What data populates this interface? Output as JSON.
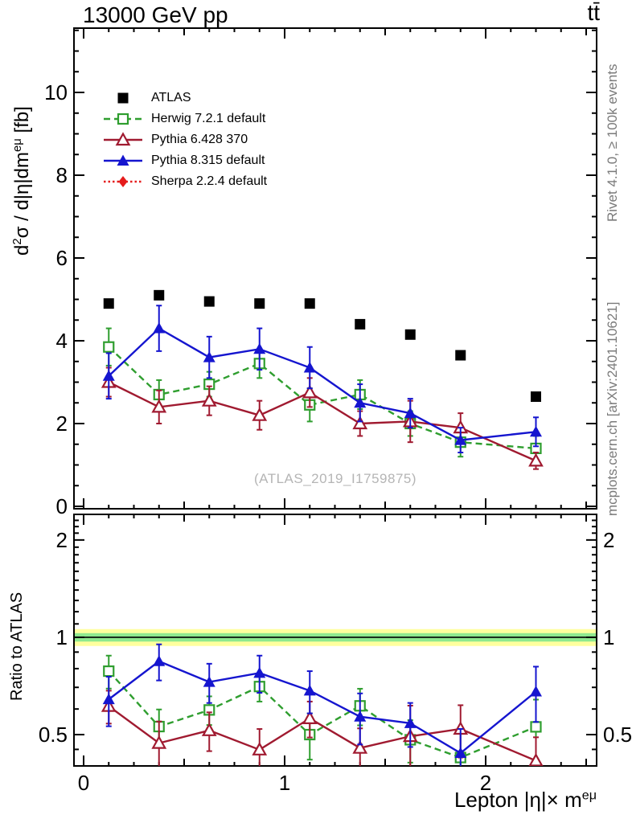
{
  "header": {
    "title_left": "13000 GeV pp",
    "title_right": "tt̄"
  },
  "side_notes": {
    "top": "Rivet 4.1.0, ≥ 100k events",
    "bottom": "mcplots.cern.ch [arXiv:2401.10621]"
  },
  "watermark": "(ATLAS_2019_I1759875)",
  "labels": {
    "ylabel_main": {
      "p1": "d",
      "s1": "2",
      "p2": "σ / d|η|dm",
      "s2": "eμ",
      "p3": " [fb]"
    },
    "ylabel_ratio": "Ratio to ATLAS",
    "xlabel": {
      "p1": "Lepton |η|× m",
      "s1": "eμ"
    }
  },
  "chart_data": {
    "type": "line",
    "title": "13000 GeV pp",
    "process_label": "tt̄",
    "xlabel": "Lepton |η|× m^eμ",
    "ylabel": "d²σ / d|η|dm^eμ [fb]",
    "ratio_label": "Ratio to ATLAS",
    "x": [
      0.125,
      0.375,
      0.625,
      0.875,
      1.125,
      1.375,
      1.625,
      1.875,
      2.25
    ],
    "bin_edges": [
      0,
      0.25,
      0.5,
      0.75,
      1.0,
      1.25,
      1.5,
      1.75,
      2.0,
      2.5
    ],
    "series": [
      {
        "key": "atlas",
        "name": "ATLAS",
        "color": "#000000",
        "marker": "square-filled",
        "line": "none",
        "values": [
          4.9,
          5.1,
          4.95,
          4.9,
          4.9,
          4.4,
          4.15,
          3.65,
          2.65
        ],
        "errors": [
          0,
          0,
          0,
          0,
          0,
          0,
          0,
          0,
          0
        ]
      },
      {
        "key": "herwig",
        "name": "Herwig 7.2.1 default",
        "color": "#2f9e2f",
        "marker": "square-open",
        "line": "dashed",
        "values": [
          3.85,
          2.7,
          2.95,
          3.45,
          2.45,
          2.7,
          2.0,
          1.55,
          1.4
        ],
        "errors": [
          0.45,
          0.35,
          0.3,
          0.35,
          0.4,
          0.35,
          0.3,
          0.35,
          0.3
        ]
      },
      {
        "key": "pythia6",
        "name": "Pythia 6.428 370",
        "color": "#a01a30",
        "marker": "triangle-open",
        "line": "solid",
        "values": [
          3.0,
          2.4,
          2.55,
          2.2,
          2.75,
          2.0,
          2.05,
          1.9,
          1.1
        ],
        "errors": [
          0.35,
          0.4,
          0.35,
          0.35,
          0.35,
          0.3,
          0.5,
          0.35,
          0.2
        ]
      },
      {
        "key": "pythia8",
        "name": "Pythia 8.315 default",
        "color": "#1515cf",
        "marker": "triangle-filled",
        "line": "solid",
        "values": [
          3.15,
          4.3,
          3.6,
          3.8,
          3.35,
          2.5,
          2.25,
          1.6,
          1.8
        ],
        "errors": [
          0.55,
          0.55,
          0.5,
          0.5,
          0.5,
          0.45,
          0.35,
          0.3,
          0.35
        ]
      },
      {
        "key": "sherpa",
        "name": "Sherpa 2.2.4 default",
        "color": "#e51c1c",
        "marker": "diamond-filled",
        "line": "dotted",
        "values": [],
        "errors": []
      }
    ],
    "ratio": {
      "reference": "ATLAS",
      "band_yellow": 0.06,
      "band_green": 0.03,
      "ylog": true,
      "ylim": [
        0.4,
        2.4
      ],
      "yticks": [
        2,
        1,
        0.5
      ]
    },
    "axes": {
      "x": {
        "lim": [
          -0.048,
          2.552
        ],
        "major": [
          0,
          1,
          2
        ],
        "medium_step": 0.5,
        "minor_step": 0.125
      },
      "y_main": {
        "lim": [
          -0.06,
          11.55
        ],
        "major": [
          0,
          2,
          4,
          6,
          8,
          10
        ],
        "minor_step": 0.5
      }
    },
    "legend_position": "top-left-inside"
  }
}
